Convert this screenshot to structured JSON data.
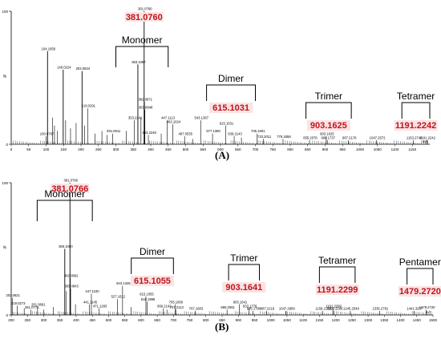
{
  "chart_data": [
    {
      "type": "bar",
      "panel_label": "(A)",
      "xlim": [
        0,
        1200
      ],
      "ylim": [
        0,
        100
      ],
      "x_ticks": [
        0,
        50,
        100,
        150,
        200,
        250,
        300,
        350,
        400,
        450,
        500,
        550,
        600,
        650,
        700,
        750,
        800,
        850,
        900,
        950,
        1000,
        1050,
        1100,
        1150
      ],
      "x_tick_labels": [
        "0",
        "50",
        "100",
        "150",
        "200",
        "250",
        "300",
        "350",
        "400",
        "450",
        "500",
        "550",
        "600",
        "650",
        "700",
        "750",
        "800",
        "850",
        "900",
        "950",
        "1000",
        "1050",
        "1100",
        "1150"
      ],
      "y_ticks": [
        0,
        100
      ],
      "y_tick_labels": [
        "0",
        "100"
      ],
      "y_axis_symbol": "%",
      "x_unit": "m/z",
      "top_label": "381.0760",
      "peaks": [
        {
          "x": 100.0767,
          "y": 6,
          "label": "100.0767"
        },
        {
          "x": 104.1058,
          "y": 70,
          "label": "104.1058"
        },
        {
          "x": 118.1,
          "y": 20
        },
        {
          "x": 124,
          "y": 14
        },
        {
          "x": 132,
          "y": 10
        },
        {
          "x": 149.0224,
          "y": 56,
          "label": "149.0224"
        },
        {
          "x": 156,
          "y": 18
        },
        {
          "x": 170,
          "y": 12
        },
        {
          "x": 186,
          "y": 16
        },
        {
          "x": 203.0634,
          "y": 55,
          "label": "203.0634"
        },
        {
          "x": 210,
          "y": 14
        },
        {
          "x": 219.0291,
          "y": 27,
          "label": "219.0291"
        },
        {
          "x": 240,
          "y": 8
        },
        {
          "x": 260,
          "y": 10
        },
        {
          "x": 275,
          "y": 7
        },
        {
          "x": 291.0911,
          "y": 8,
          "label": "291.0911"
        },
        {
          "x": 330,
          "y": 10
        },
        {
          "x": 353.2241,
          "y": 18,
          "label": "353.2241"
        },
        {
          "x": 363.1087,
          "y": 60,
          "label": "363.1087"
        },
        {
          "x": 372,
          "y": 20
        },
        {
          "x": 381.076,
          "y": 100,
          "label": "381.0760"
        },
        {
          "x": 382.0871,
          "y": 32,
          "label": "382.0871"
        },
        {
          "x": 383.0848,
          "y": 26,
          "label": "383.0848"
        },
        {
          "x": 393.2248,
          "y": 7,
          "label": "393.2248"
        },
        {
          "x": 430,
          "y": 8
        },
        {
          "x": 447.1113,
          "y": 18,
          "label": "447.1113"
        },
        {
          "x": 463.1024,
          "y": 15,
          "label": "463.1024"
        },
        {
          "x": 497.0535,
          "y": 6,
          "label": "497.0535"
        },
        {
          "x": 520,
          "y": 4
        },
        {
          "x": 543.1367,
          "y": 18,
          "label": "543.1367"
        },
        {
          "x": 577.138,
          "y": 8,
          "label": "577.1380"
        },
        {
          "x": 615.1031,
          "y": 14,
          "label": "615.1031"
        },
        {
          "x": 639.2143,
          "y": 6,
          "label": "639.2143"
        },
        {
          "x": 660,
          "y": 5
        },
        {
          "x": 705.1901,
          "y": 8,
          "label": "705.1901"
        },
        {
          "x": 723.2011,
          "y": 4,
          "label": "723.2011"
        },
        {
          "x": 779.1858,
          "y": 4,
          "label": "779.1858"
        },
        {
          "x": 855.2076,
          "y": 3,
          "label": "855.2076"
        },
        {
          "x": 903.1625,
          "y": 6,
          "label": "903.1625"
        },
        {
          "x": 906.1737,
          "y": 3,
          "label": "906.1737"
        },
        {
          "x": 967.2178,
          "y": 3,
          "label": "967.2178"
        },
        {
          "x": 1047.2572,
          "y": 3,
          "label": "1047.2572"
        },
        {
          "x": 1153.2748,
          "y": 3,
          "label": "1153.2748"
        },
        {
          "x": 1191.2242,
          "y": 3,
          "label": "1191.2242"
        }
      ],
      "brackets": [
        {
          "label": "Monomer",
          "x1": 300,
          "x2": 450,
          "mass": ""
        },
        {
          "label": "Dimer",
          "x1": 560,
          "x2": 700,
          "mass": "615.1031"
        },
        {
          "label": "Trimer",
          "x1": 845,
          "x2": 975,
          "mass": "903.1625"
        },
        {
          "label": "Tetramer",
          "x1": 1120,
          "x2": 1200,
          "mass": "1191.2242"
        }
      ]
    },
    {
      "type": "bar",
      "panel_label": "(B)",
      "xlim": [
        200,
        1500
      ],
      "ylim": [
        0,
        100
      ],
      "x_ticks": [
        200,
        250,
        300,
        350,
        400,
        450,
        500,
        550,
        600,
        650,
        700,
        750,
        800,
        850,
        900,
        950,
        1000,
        1050,
        1100,
        1150,
        1200,
        1250,
        1300,
        1350,
        1400,
        1450,
        1500
      ],
      "x_tick_labels": [
        "200",
        "250",
        "300",
        "350",
        "400",
        "450",
        "500",
        "550",
        "600",
        "650",
        "700",
        "750",
        "800",
        "850",
        "900",
        "950",
        "1000",
        "1050",
        "1100",
        "1150",
        "1200",
        "1250",
        "1300",
        "1350",
        "1400",
        "1450",
        "1500"
      ],
      "y_ticks": [
        0,
        100
      ],
      "y_tick_labels": [
        "0",
        "100"
      ],
      "y_axis_symbol": "%",
      "x_unit": "m/z",
      "top_label": "381.0766",
      "peaks": [
        {
          "x": 203.0621,
          "y": 13,
          "label": "203.0621"
        },
        {
          "x": 219.0273,
          "y": 7,
          "label": "219.0273"
        },
        {
          "x": 240,
          "y": 5
        },
        {
          "x": 261.0775,
          "y": 4,
          "label": "261.0775"
        },
        {
          "x": 281.0891,
          "y": 6,
          "label": "281.0891"
        },
        {
          "x": 300,
          "y": 4
        },
        {
          "x": 330,
          "y": 6
        },
        {
          "x": 365.106,
          "y": 50,
          "label": "365.1060"
        },
        {
          "x": 370,
          "y": 18
        },
        {
          "x": 381.0766,
          "y": 100,
          "label": "381.0766"
        },
        {
          "x": 382.0862,
          "y": 28,
          "label": "382.0862"
        },
        {
          "x": 383.0843,
          "y": 20,
          "label": "383.0843"
        },
        {
          "x": 398,
          "y": 8
        },
        {
          "x": 441.1145,
          "y": 8,
          "label": "441.1145"
        },
        {
          "x": 447.11,
          "y": 16,
          "label": "447.1100"
        },
        {
          "x": 471.1265,
          "y": 5,
          "label": "471.1265"
        },
        {
          "x": 527.1612,
          "y": 12,
          "label": "527.1612"
        },
        {
          "x": 543.1346,
          "y": 22,
          "label": "543.1346"
        },
        {
          "x": 570,
          "y": 6
        },
        {
          "x": 615.1055,
          "y": 14,
          "label": "615.1055"
        },
        {
          "x": 619.1998,
          "y": 10,
          "label": "619.1998"
        },
        {
          "x": 669.2142,
          "y": 5,
          "label": "669.2142"
        },
        {
          "x": 680,
          "y": 4
        },
        {
          "x": 705.18,
          "y": 8,
          "label": "705.1800"
        },
        {
          "x": 707.2113,
          "y": 4,
          "label": "707.2113"
        },
        {
          "x": 767.1683,
          "y": 3,
          "label": "767.1683"
        },
        {
          "x": 865.2061,
          "y": 4,
          "label": "865.2061"
        },
        {
          "x": 903.1641,
          "y": 8,
          "label": "903.1641"
        },
        {
          "x": 933.1776,
          "y": 5,
          "label": "933.1776"
        },
        {
          "x": 945.179,
          "y": 3,
          "label": "945.1790"
        },
        {
          "x": 987.2216,
          "y": 3,
          "label": "987.2216"
        },
        {
          "x": 1047.2809,
          "y": 3,
          "label": "1047.2809"
        },
        {
          "x": 1159.2104,
          "y": 3,
          "label": "1159.2104"
        },
        {
          "x": 1191.2299,
          "y": 5,
          "label": "1191.2299"
        },
        {
          "x": 1195.2268,
          "y": 3,
          "label": "1195.2268"
        },
        {
          "x": 1245.2549,
          "y": 3,
          "label": "1245.2549"
        },
        {
          "x": 1335.2781,
          "y": 3,
          "label": "1335.2781"
        },
        {
          "x": 1441.3267,
          "y": 3,
          "label": "1441.3267"
        },
        {
          "x": 1479.272,
          "y": 4,
          "label": "1479.2720"
        }
      ],
      "brackets": [
        {
          "label": "Monomer",
          "x1": 280,
          "x2": 450,
          "mass": ""
        },
        {
          "label": "Dimer",
          "x1": 570,
          "x2": 700,
          "mass": "615.1055"
        },
        {
          "label": "Trimer",
          "x1": 870,
          "x2": 965,
          "mass": "903.1641"
        },
        {
          "label": "Tetramer",
          "x1": 1150,
          "x2": 1260,
          "mass": "1191.2299"
        },
        {
          "label": "Pentamer",
          "x1": 1420,
          "x2": 1500,
          "mass": "1479.2720"
        }
      ]
    }
  ]
}
